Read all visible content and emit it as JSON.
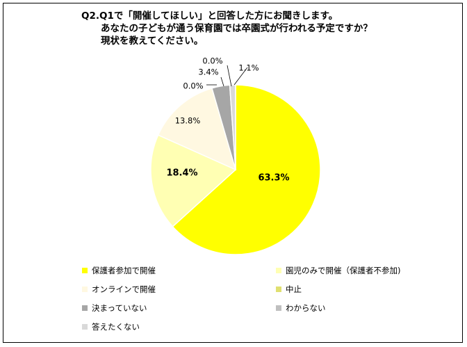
{
  "title": {
    "line1": "Q2.Q1で「開催してほしい」と回答した方にお聞きします。",
    "line2": "あなたの子どもが通う保育園では卒園式が行われる予定ですか？",
    "line3": "現状を教えてください。"
  },
  "chart_data": {
    "type": "pie",
    "slices": [
      {
        "label": "保護者参加で開催",
        "value": 63.3,
        "value_label": "63.3%",
        "color": "#FFFF00"
      },
      {
        "label": "園児のみで開催（保護者不参加)",
        "value": 18.4,
        "value_label": "18.4%",
        "color": "#FFFFB3"
      },
      {
        "label": "オンラインで開催",
        "value": 13.8,
        "value_label": "13.8%",
        "color": "#FFF8E1"
      },
      {
        "label": "中止",
        "value": 0.0,
        "value_label": "0.0%",
        "color": "#E0E070"
      },
      {
        "label": "決まっていない",
        "value": 3.4,
        "value_label": "3.4%",
        "color": "#A6A6A6"
      },
      {
        "label": "わからない",
        "value": 0.0,
        "value_label": "0.0%",
        "color": "#BFBFBF"
      },
      {
        "label": "答えたくない",
        "value": 1.1,
        "value_label": "1.1%",
        "color": "#D9D9D9"
      }
    ],
    "legend_placement": "bottom"
  }
}
